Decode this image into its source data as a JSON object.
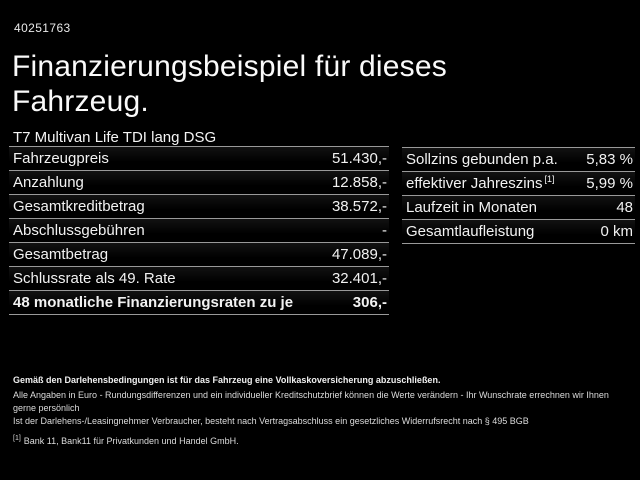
{
  "header": {
    "listing_id": "40251763",
    "title_line1": "Finanzierungsbeispiel für dieses",
    "title_line2": "Fahrzeug."
  },
  "vehicle": {
    "name": "T7 Multivan Life TDI lang DSG"
  },
  "finance_table": {
    "rows": [
      {
        "label": "Fahrzeugpreis",
        "value": "51.430,-"
      },
      {
        "label": "Anzahlung",
        "value": "12.858,-"
      },
      {
        "label": "Gesamtkreditbetrag",
        "value": "38.572,-"
      },
      {
        "label": "Abschlussgebühren",
        "value": "-"
      },
      {
        "label": "Gesamtbetrag",
        "value": "47.089,-"
      },
      {
        "label": "Schlussrate als 49. Rate",
        "value": "32.401,-"
      }
    ],
    "total_row": {
      "label": "48 monatliche Finanzierungsraten zu je",
      "value": "306,-"
    }
  },
  "conditions_table": {
    "rows": [
      {
        "label": "Sollzins gebunden p.a.",
        "value": "5,83 %"
      },
      {
        "label": "effektiver Jahreszins",
        "footnote_marker": "[1]",
        "value": "5,99 %"
      },
      {
        "label": "Laufzeit in Monaten",
        "value": "48"
      },
      {
        "label": "Gesamtlaufleistung",
        "value": "0 km"
      }
    ]
  },
  "footer": {
    "insurance_note": "Gemäß den Darlehensbedingungen ist für das Fahrzeug eine Vollkaskoversicherung abzuschließen.",
    "disclaimer_line1": "Alle Angaben in Euro - Rundungsdifferenzen und ein individueller Kreditschutzbrief können die Werte verändern - Ihr Wunschrate errechnen wir Ihnen gerne persönlich",
    "disclaimer_line2": "Ist der Darlehens-/Leasingnehmer Verbraucher, besteht nach Vertragsabschluss ein gesetzliches Widerrufsrecht nach § 495 BGB",
    "footnote_marker": "[1]",
    "footnote_text": "Bank 11, Bank11 für Privatkunden und Handel GmbH."
  },
  "colors": {
    "background": "#000000",
    "text": "#f2f2f2",
    "separator": "#999999"
  }
}
